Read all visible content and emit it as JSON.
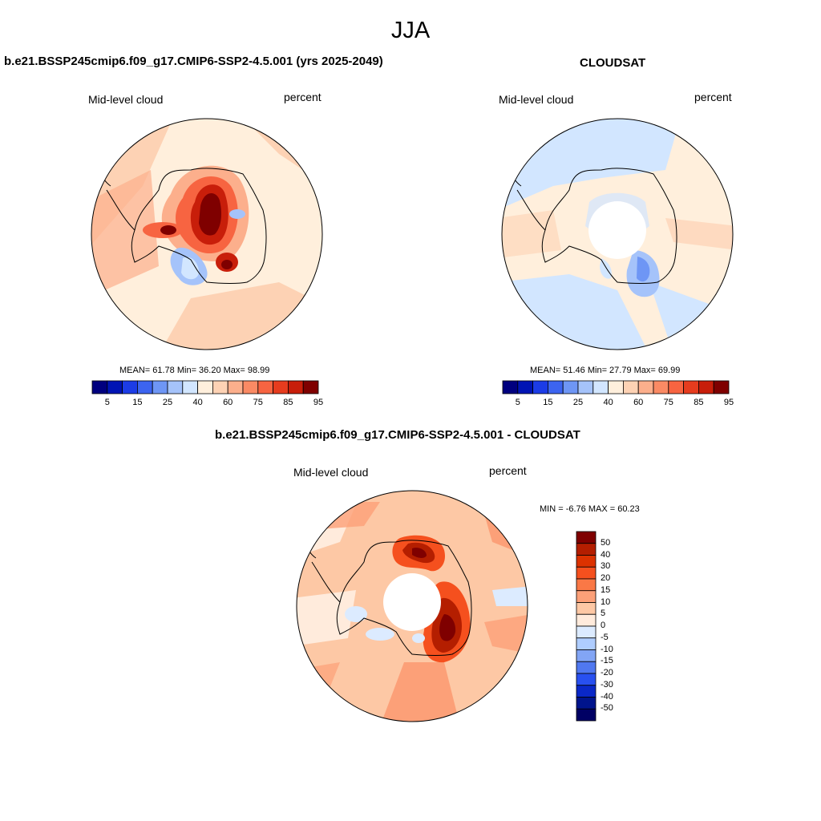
{
  "figure": {
    "title": "JJA"
  },
  "panels": [
    {
      "title": "b.e21.BSSP245cmip6.f09_g17.CMIP6-SSP2-4.5.001 (yrs 2025-2049)",
      "left_label": "Mid-level cloud",
      "right_label": "percent",
      "stats": "MEAN=  61.78  Min=  36.20  Max=  98.99",
      "mean": 61.78,
      "min": 36.2,
      "max": 98.99
    },
    {
      "title": "CLOUDSAT",
      "left_label": "Mid-level cloud",
      "right_label": "percent",
      "stats": "MEAN=  51.46  Min=  27.79  Max=  69.99",
      "mean": 51.46,
      "min": 27.79,
      "max": 69.99
    },
    {
      "title": "b.e21.BSSP245cmip6.f09_g17.CMIP6-SSP2-4.5.001 - CLOUDSAT",
      "left_label": "Mid-level cloud",
      "right_label": "percent",
      "stats": "MIN =  -6.76 MAX =  60.23",
      "min": -6.76,
      "max": 60.23
    }
  ],
  "colorbar_abs": {
    "orientation": "horizontal",
    "tick_labels": [
      "5",
      "15",
      "25",
      "40",
      "60",
      "75",
      "85",
      "95"
    ],
    "colors": [
      "#00007f",
      "#0014b4",
      "#1c3ce6",
      "#3c64f0",
      "#6e96f5",
      "#a5c3fa",
      "#d2e6ff",
      "#ffefdc",
      "#fdd2b4",
      "#fcaf8c",
      "#fa8a64",
      "#f76441",
      "#e63c1e",
      "#c81e0a",
      "#7f0000"
    ]
  },
  "colorbar_diff": {
    "orientation": "vertical",
    "tick_labels": [
      "50",
      "40",
      "30",
      "20",
      "15",
      "10",
      "5",
      "0",
      "-5",
      "-10",
      "-15",
      "-20",
      "-30",
      "-40",
      "-50"
    ],
    "colors": [
      "#7f0000",
      "#b41e00",
      "#dc3200",
      "#f5501e",
      "#fa7846",
      "#fca078",
      "#fdc8a5",
      "#ffebdc",
      "#dcebff",
      "#afcdff",
      "#82a5f5",
      "#5078f0",
      "#2850f0",
      "#0a28c8",
      "#00148c",
      "#000064"
    ]
  }
}
